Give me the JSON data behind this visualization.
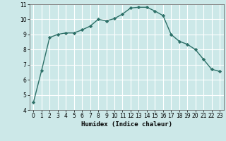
{
  "x": [
    0,
    1,
    2,
    3,
    4,
    5,
    6,
    7,
    8,
    9,
    10,
    11,
    12,
    13,
    14,
    15,
    16,
    17,
    18,
    19,
    20,
    21,
    22,
    23
  ],
  "y": [
    4.5,
    6.6,
    8.8,
    9.0,
    9.1,
    9.1,
    9.3,
    9.55,
    10.0,
    9.9,
    10.05,
    10.35,
    10.75,
    10.8,
    10.8,
    10.55,
    10.25,
    9.0,
    8.55,
    8.35,
    8.0,
    7.35,
    6.7,
    6.55
  ],
  "line_color": "#2d7068",
  "marker": "D",
  "marker_size": 2.2,
  "bg_color": "#cce8e8",
  "grid_color": "#ffffff",
  "xlabel": "Humidex (Indice chaleur)",
  "ylim": [
    4,
    11
  ],
  "xlim": [
    -0.5,
    23.5
  ],
  "yticks": [
    4,
    5,
    6,
    7,
    8,
    9,
    10,
    11
  ],
  "xticks": [
    0,
    1,
    2,
    3,
    4,
    5,
    6,
    7,
    8,
    9,
    10,
    11,
    12,
    13,
    14,
    15,
    16,
    17,
    18,
    19,
    20,
    21,
    22,
    23
  ],
  "xlabel_fontsize": 6.5,
  "tick_fontsize": 5.5,
  "line_width": 1.0
}
